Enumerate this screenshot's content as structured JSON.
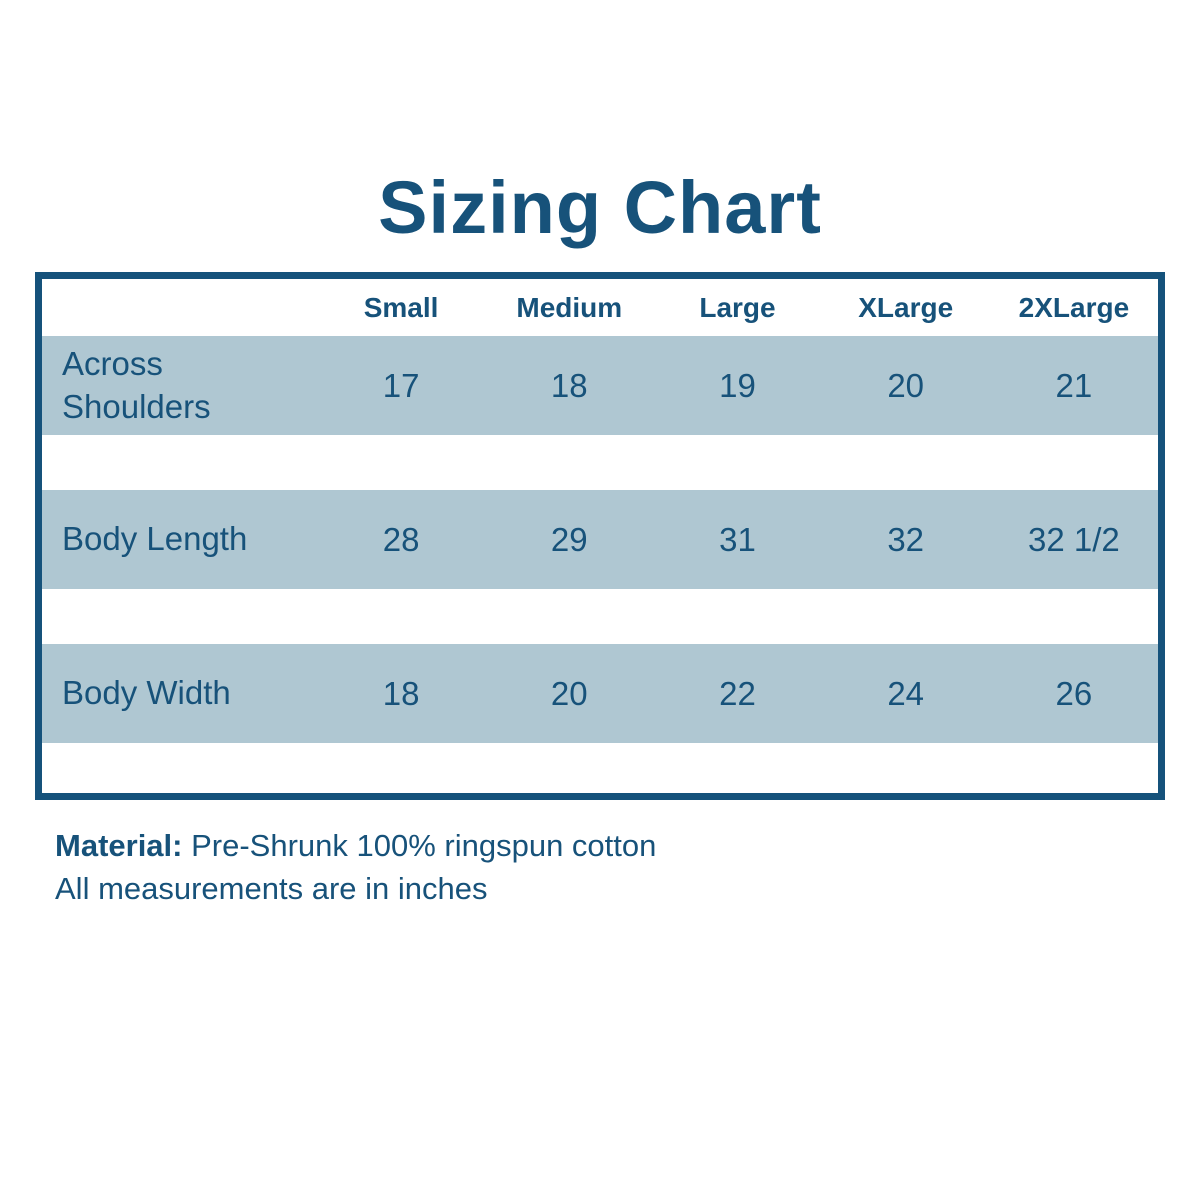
{
  "page": {
    "title": "Sizing Chart",
    "notes": {
      "material_label": "Material:",
      "material_value": " Pre-Shrunk 100% ringspun cotton",
      "measurements_note": "All measurements are in inches"
    }
  },
  "chart_data": {
    "type": "table",
    "title": "Sizing Chart",
    "columns": [
      "",
      "Small",
      "Medium",
      "Large",
      "XLarge",
      "2XLarge"
    ],
    "rows": [
      {
        "label": "Across Shoulders",
        "values": [
          "17",
          "18",
          "19",
          "20",
          "21"
        ]
      },
      {
        "label": "Body Length",
        "values": [
          "28",
          "29",
          "31",
          "32",
          "32 1/2"
        ]
      },
      {
        "label": "Body Width",
        "values": [
          "18",
          "20",
          "22",
          "24",
          "26"
        ]
      }
    ],
    "units": "inches",
    "layout_hints": {
      "row_band_style": "alternating light blue bands with white gaps",
      "header_position": "top, white background, bold labels"
    }
  },
  "colors": {
    "accent_text": "#17527a",
    "table_border": "#15527b",
    "row_background": "#afc7d2",
    "page_background": "#ffffff"
  }
}
